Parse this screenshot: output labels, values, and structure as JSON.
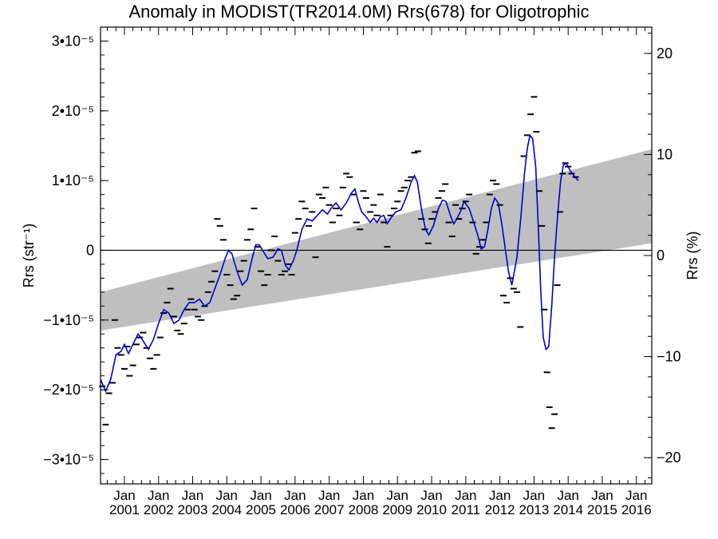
{
  "chart_data": {
    "type": "line",
    "title": "Anomaly in MODIST(TR2014.0M) Rrs(678) for Oligotrophic",
    "ylabel": "Rrs (str⁻¹)",
    "ylabel_right": "Rrs (%)",
    "ylim": [
      -3.35e-05,
      3.2e-05
    ],
    "ylim_right": [
      -22.6,
      22.6
    ],
    "xlim": [
      2000.3,
      2016.45
    ],
    "yticks": [
      {
        "value": -3e-05,
        "label": "−3•10⁻⁵"
      },
      {
        "value": -2e-05,
        "label": "−2•10⁻⁵"
      },
      {
        "value": -1e-05,
        "label": "−1•10⁻⁵"
      },
      {
        "value": 0,
        "label": "0"
      },
      {
        "value": 1e-05,
        "label": "1•10⁻⁵"
      },
      {
        "value": 2e-05,
        "label": "2•10⁻⁵"
      },
      {
        "value": 3e-05,
        "label": "3•10⁻⁵"
      }
    ],
    "yticks_right": [
      {
        "value": -20,
        "label": "−20"
      },
      {
        "value": -10,
        "label": "−10"
      },
      {
        "value": 0,
        "label": "0"
      },
      {
        "value": 10,
        "label": "10"
      },
      {
        "value": 20,
        "label": "20"
      }
    ],
    "xticks": [
      {
        "value": 2001,
        "label": "Jan 2001"
      },
      {
        "value": 2002,
        "label": "Jan 2002"
      },
      {
        "value": 2003,
        "label": "Jan 2003"
      },
      {
        "value": 2004,
        "label": "Jan 2004"
      },
      {
        "value": 2005,
        "label": "Jan 2005"
      },
      {
        "value": 2006,
        "label": "Jan 2006"
      },
      {
        "value": 2007,
        "label": "Jan 2007"
      },
      {
        "value": 2008,
        "label": "Jan 2008"
      },
      {
        "value": 2009,
        "label": "Jan 2009"
      },
      {
        "value": 2010,
        "label": "Jan 2010"
      },
      {
        "value": 2011,
        "label": "Jan 2011"
      },
      {
        "value": 2012,
        "label": "Jan 2012"
      },
      {
        "value": 2013,
        "label": "Jan 2013"
      },
      {
        "value": 2014,
        "label": "Jan 2014"
      },
      {
        "value": 2015,
        "label": "Jan 2015"
      },
      {
        "value": 2016,
        "label": "Jan 2016"
      }
    ],
    "band": {
      "x": [
        2000.3,
        2016.45
      ],
      "lower": [
        -1.15e-05,
        1e-06
      ],
      "upper": [
        -6e-06,
        1.45e-05
      ]
    },
    "zero_line": 0,
    "smoothed": {
      "color": "#0000cc",
      "points": [
        [
          2000.3,
          -1.85e-05
        ],
        [
          2000.45,
          -2.02e-05
        ],
        [
          2000.6,
          -1.85e-05
        ],
        [
          2000.75,
          -1.5e-05
        ],
        [
          2000.9,
          -1.45e-05
        ],
        [
          2001.0,
          -1.35e-05
        ],
        [
          2001.12,
          -1.48e-05
        ],
        [
          2001.25,
          -1.35e-05
        ],
        [
          2001.4,
          -1.2e-05
        ],
        [
          2001.55,
          -1.3e-05
        ],
        [
          2001.7,
          -1.42e-05
        ],
        [
          2001.85,
          -1.28e-05
        ],
        [
          2002.0,
          -1.05e-05
        ],
        [
          2002.15,
          -8.5e-06
        ],
        [
          2002.3,
          -9e-06
        ],
        [
          2002.45,
          -1.05e-05
        ],
        [
          2002.6,
          -1e-05
        ],
        [
          2002.75,
          -8.5e-06
        ],
        [
          2002.9,
          -7.5e-06
        ],
        [
          2003.05,
          -7.5e-06
        ],
        [
          2003.2,
          -7e-06
        ],
        [
          2003.35,
          -8e-06
        ],
        [
          2003.5,
          -7.5e-06
        ],
        [
          2003.65,
          -5.5e-06
        ],
        [
          2003.8,
          -3.5e-06
        ],
        [
          2003.95,
          -1.2e-06
        ],
        [
          2004.05,
          0.0
        ],
        [
          2004.15,
          -5e-07
        ],
        [
          2004.3,
          -3e-06
        ],
        [
          2004.45,
          -5e-06
        ],
        [
          2004.6,
          -4.2e-06
        ],
        [
          2004.75,
          -1e-06
        ],
        [
          2004.85,
          8e-07
        ],
        [
          2004.95,
          8e-07
        ],
        [
          2005.05,
          0.0
        ],
        [
          2005.2,
          -1.2e-06
        ],
        [
          2005.35,
          -1e-06
        ],
        [
          2005.5,
          2e-07
        ],
        [
          2005.6,
          0.0
        ],
        [
          2005.72,
          -2.2e-06
        ],
        [
          2005.82,
          -2.8e-06
        ],
        [
          2005.95,
          -1.5e-06
        ],
        [
          2006.05,
          0.0
        ],
        [
          2006.2,
          3e-06
        ],
        [
          2006.35,
          4.5e-06
        ],
        [
          2006.5,
          4.2e-06
        ],
        [
          2006.65,
          5e-06
        ],
        [
          2006.8,
          5.8e-06
        ],
        [
          2006.95,
          5.2e-06
        ],
        [
          2007.05,
          6e-06
        ],
        [
          2007.2,
          6.8e-06
        ],
        [
          2007.35,
          5.8e-06
        ],
        [
          2007.5,
          6.8e-06
        ],
        [
          2007.65,
          8.2e-06
        ],
        [
          2007.75,
          8.8e-06
        ],
        [
          2007.85,
          7e-06
        ],
        [
          2007.95,
          5.5e-06
        ],
        [
          2008.05,
          5e-06
        ],
        [
          2008.2,
          4e-06
        ],
        [
          2008.3,
          4.6e-06
        ],
        [
          2008.4,
          4e-06
        ],
        [
          2008.5,
          4.8e-06
        ],
        [
          2008.6,
          5e-06
        ],
        [
          2008.7,
          3.8e-06
        ],
        [
          2008.8,
          4.6e-06
        ],
        [
          2008.95,
          5.5e-06
        ],
        [
          2009.1,
          5.8e-06
        ],
        [
          2009.25,
          7.5e-06
        ],
        [
          2009.4,
          9.8e-06
        ],
        [
          2009.5,
          1.07e-05
        ],
        [
          2009.58,
          9.8e-06
        ],
        [
          2009.7,
          6e-06
        ],
        [
          2009.82,
          3e-06
        ],
        [
          2009.92,
          2.2e-06
        ],
        [
          2010.05,
          3.5e-06
        ],
        [
          2010.2,
          6e-06
        ],
        [
          2010.32,
          7.2e-06
        ],
        [
          2010.42,
          7e-06
        ],
        [
          2010.55,
          5e-06
        ],
        [
          2010.65,
          3.8e-06
        ],
        [
          2010.75,
          4.6e-06
        ],
        [
          2010.85,
          5.6e-06
        ],
        [
          2010.95,
          7e-06
        ],
        [
          2011.1,
          6e-06
        ],
        [
          2011.2,
          4.5e-06
        ],
        [
          2011.35,
          2.2e-06
        ],
        [
          2011.45,
          2e-07
        ],
        [
          2011.55,
          5e-07
        ],
        [
          2011.65,
          3e-06
        ],
        [
          2011.75,
          6e-06
        ],
        [
          2011.85,
          7.5e-06
        ],
        [
          2011.95,
          6.8e-06
        ],
        [
          2012.05,
          4e-06
        ],
        [
          2012.15,
          5e-07
        ],
        [
          2012.25,
          -3e-06
        ],
        [
          2012.35,
          -5e-06
        ],
        [
          2012.5,
          -1e-06
        ],
        [
          2012.62,
          5e-06
        ],
        [
          2012.72,
          1.1e-05
        ],
        [
          2012.8,
          1.45e-05
        ],
        [
          2012.88,
          1.65e-05
        ],
        [
          2012.96,
          1.6e-05
        ],
        [
          2013.05,
          1.2e-05
        ],
        [
          2013.13,
          3e-06
        ],
        [
          2013.2,
          -6e-06
        ],
        [
          2013.27,
          -1.25e-05
        ],
        [
          2013.35,
          -1.42e-05
        ],
        [
          2013.43,
          -1.38e-05
        ],
        [
          2013.52,
          -8e-06
        ],
        [
          2013.6,
          -1e-06
        ],
        [
          2013.7,
          5.5e-06
        ],
        [
          2013.78,
          1e-05
        ],
        [
          2013.86,
          1.22e-05
        ],
        [
          2013.94,
          1.25e-05
        ],
        [
          2014.05,
          1.15e-05
        ],
        [
          2014.2,
          1.05e-05
        ],
        [
          2014.3,
          1e-05
        ]
      ]
    },
    "markers": [
      [
        2000.35,
        -1.95e-05
      ],
      [
        2000.45,
        -2.5e-05
      ],
      [
        2000.55,
        -2.05e-05
      ],
      [
        2000.65,
        -1.9e-05
      ],
      [
        2000.72,
        -1e-05
      ],
      [
        2000.8,
        -1.4e-05
      ],
      [
        2000.9,
        -1.5e-05
      ],
      [
        2001.0,
        -1.7e-05
      ],
      [
        2001.08,
        -1.38e-05
      ],
      [
        2001.15,
        -1.8e-05
      ],
      [
        2001.25,
        -1.65e-05
      ],
      [
        2001.35,
        -1.35e-05
      ],
      [
        2001.45,
        -1.25e-05
      ],
      [
        2001.55,
        -1.18e-05
      ],
      [
        2001.65,
        -1.4e-05
      ],
      [
        2001.75,
        -1.55e-05
      ],
      [
        2001.85,
        -1.7e-05
      ],
      [
        2001.95,
        -1.5e-05
      ],
      [
        2002.05,
        -1.25e-05
      ],
      [
        2002.15,
        -9e-06
      ],
      [
        2002.25,
        -7.5e-06
      ],
      [
        2002.35,
        -5.5e-06
      ],
      [
        2002.45,
        -9.5e-06
      ],
      [
        2002.55,
        -1.15e-05
      ],
      [
        2002.65,
        -1.2e-05
      ],
      [
        2002.75,
        -1.05e-05
      ],
      [
        2002.85,
        -8.5e-06
      ],
      [
        2002.95,
        -7e-06
      ],
      [
        2003.05,
        -8.5e-06
      ],
      [
        2003.15,
        -9.5e-06
      ],
      [
        2003.25,
        -1e-05
      ],
      [
        2003.35,
        -8e-06
      ],
      [
        2003.45,
        -6e-06
      ],
      [
        2003.55,
        -4.5e-06
      ],
      [
        2003.65,
        -3e-06
      ],
      [
        2003.72,
        4.5e-06
      ],
      [
        2003.8,
        3.5e-06
      ],
      [
        2003.9,
        1.5e-06
      ],
      [
        2004.0,
        -3.5e-06
      ],
      [
        2004.1,
        -5e-06
      ],
      [
        2004.2,
        -7e-06
      ],
      [
        2004.3,
        -6.5e-06
      ],
      [
        2004.4,
        -3e-06
      ],
      [
        2004.5,
        -1.5e-06
      ],
      [
        2004.6,
        1.5e-06
      ],
      [
        2004.7,
        3e-06
      ],
      [
        2004.8,
        6e-06
      ],
      [
        2004.9,
        5e-07
      ],
      [
        2005.0,
        -3e-06
      ],
      [
        2005.1,
        -5e-06
      ],
      [
        2005.2,
        -3.5e-06
      ],
      [
        2005.3,
        0.0
      ],
      [
        2005.4,
        2e-06
      ],
      [
        2005.5,
        -1.5e-06
      ],
      [
        2005.6,
        -3.5e-06
      ],
      [
        2005.7,
        -3e-06
      ],
      [
        2005.8,
        -2e-06
      ],
      [
        2005.9,
        -3.5e-06
      ],
      [
        2006.0,
        2.5e-06
      ],
      [
        2006.1,
        4.5e-06
      ],
      [
        2006.2,
        7e-06
      ],
      [
        2006.3,
        6e-06
      ],
      [
        2006.4,
        3.5e-06
      ],
      [
        2006.5,
        5.5e-06
      ],
      [
        2006.6,
        -1e-06
      ],
      [
        2006.7,
        8e-06
      ],
      [
        2006.8,
        7.5e-06
      ],
      [
        2006.9,
        9e-06
      ],
      [
        2007.0,
        6.5e-06
      ],
      [
        2007.1,
        4e-06
      ],
      [
        2007.2,
        6e-06
      ],
      [
        2007.3,
        5e-06
      ],
      [
        2007.4,
        9e-06
      ],
      [
        2007.5,
        1.1e-05
      ],
      [
        2007.6,
        1.05e-05
      ],
      [
        2007.7,
        8e-06
      ],
      [
        2007.8,
        4e-06
      ],
      [
        2007.9,
        3e-06
      ],
      [
        2008.0,
        8.5e-06
      ],
      [
        2008.08,
        7.5e-06
      ],
      [
        2008.2,
        5.5e-06
      ],
      [
        2008.3,
        6.5e-06
      ],
      [
        2008.4,
        5e-06
      ],
      [
        2008.5,
        8e-06
      ],
      [
        2008.6,
        4e-06
      ],
      [
        2008.7,
        5e-07
      ],
      [
        2008.8,
        5e-06
      ],
      [
        2008.9,
        6e-06
      ],
      [
        2009.0,
        7e-06
      ],
      [
        2009.1,
        8.5e-06
      ],
      [
        2009.2,
        9e-06
      ],
      [
        2009.3,
        1e-05
      ],
      [
        2009.4,
        1.05e-05
      ],
      [
        2009.5,
        1.4e-05
      ],
      [
        2009.6,
        1.42e-05
      ],
      [
        2009.7,
        4.5e-06
      ],
      [
        2009.8,
        3e-06
      ],
      [
        2009.9,
        1e-06
      ],
      [
        2010.0,
        4.5e-06
      ],
      [
        2010.1,
        5.5e-06
      ],
      [
        2010.2,
        7.5e-06
      ],
      [
        2010.3,
        8.5e-06
      ],
      [
        2010.4,
        9.5e-06
      ],
      [
        2010.5,
        4e-06
      ],
      [
        2010.6,
        2e-06
      ],
      [
        2010.7,
        6.5e-06
      ],
      [
        2010.8,
        4.5e-06
      ],
      [
        2010.9,
        6e-06
      ],
      [
        2011.0,
        7e-06
      ],
      [
        2011.1,
        8e-06
      ],
      [
        2011.2,
        4e-06
      ],
      [
        2011.3,
        -5e-07
      ],
      [
        2011.4,
        5e-07
      ],
      [
        2011.5,
        1.5e-06
      ],
      [
        2011.6,
        4e-06
      ],
      [
        2011.7,
        8e-06
      ],
      [
        2011.8,
        1e-05
      ],
      [
        2011.9,
        9.5e-06
      ],
      [
        2012.0,
        6.5e-06
      ],
      [
        2012.1,
        -6.5e-06
      ],
      [
        2012.2,
        -7.5e-06
      ],
      [
        2012.3,
        -4e-06
      ],
      [
        2012.4,
        -5.5e-06
      ],
      [
        2012.5,
        -6e-06
      ],
      [
        2012.6,
        -1.1e-05
      ],
      [
        2012.7,
        1.35e-05
      ],
      [
        2012.8,
        1.65e-05
      ],
      [
        2012.9,
        1.95e-05
      ],
      [
        2013.0,
        2.2e-05
      ],
      [
        2013.07,
        1.7e-05
      ],
      [
        2013.15,
        8.5e-06
      ],
      [
        2013.23,
        3.5e-06
      ],
      [
        2013.3,
        -8.5e-06
      ],
      [
        2013.38,
        -1.75e-05
      ],
      [
        2013.45,
        -2.25e-05
      ],
      [
        2013.52,
        -2.55e-05
      ],
      [
        2013.6,
        -2.35e-05
      ],
      [
        2013.68,
        -5e-06
      ],
      [
        2013.76,
        5.5e-06
      ],
      [
        2013.84,
        1.1e-05
      ],
      [
        2013.92,
        1.25e-05
      ],
      [
        2014.0,
        1.2e-05
      ],
      [
        2014.1,
        1.1e-05
      ],
      [
        2014.22,
        1.05e-05
      ]
    ]
  }
}
